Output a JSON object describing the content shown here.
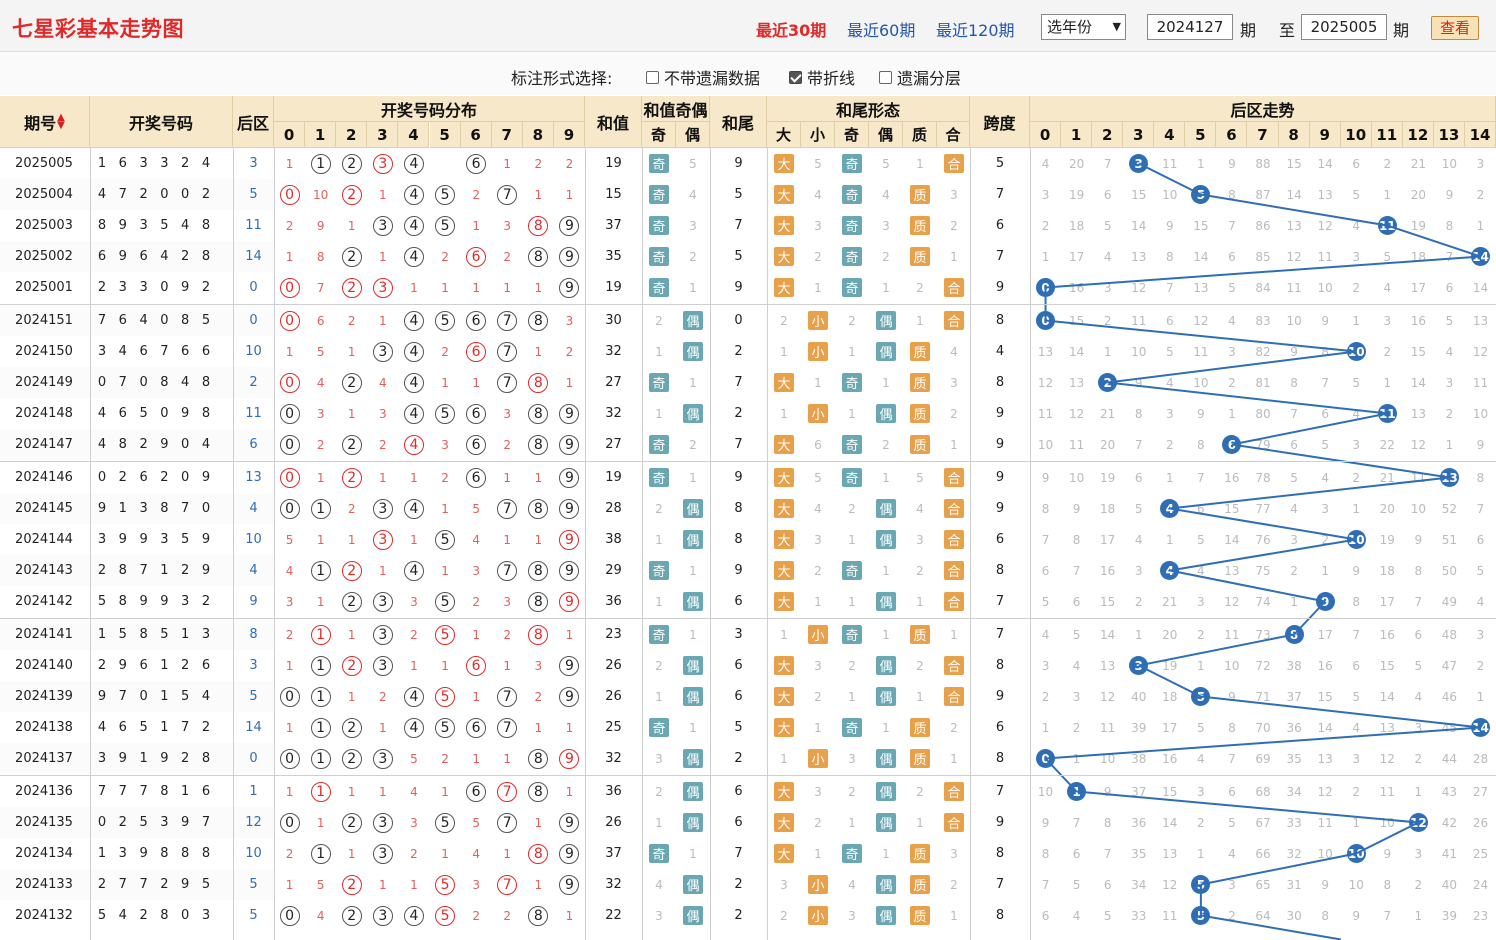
{
  "header": {
    "title": "七星彩基本走势图",
    "links": [
      "最近30期",
      "最近60期",
      "最近120期"
    ],
    "year_select": "选年份",
    "from_period": "2024127",
    "period_unit": "期",
    "to_label": "至",
    "to_period": "2025005",
    "view_button": "查看"
  },
  "options": {
    "label": "标注形式选择:",
    "items": [
      {
        "label": "不带遗漏数据",
        "checked": false
      },
      {
        "label": "带折线",
        "checked": true
      },
      {
        "label": "遗漏分层",
        "checked": false
      }
    ]
  },
  "columns": {
    "issue": "期号",
    "sort_icon": "sort-arrows-icon",
    "draw": "开奖号码",
    "back": "后区",
    "dist": "开奖号码分布",
    "digits": [
      "0",
      "1",
      "2",
      "3",
      "4",
      "5",
      "6",
      "7",
      "8",
      "9"
    ],
    "sum": "和值",
    "sum_oe": "和值奇偶",
    "odd": "奇",
    "even": "偶",
    "tail": "和尾",
    "tail_form": "和尾形态",
    "big": "大",
    "small": "小",
    "prime": "质",
    "composite": "合",
    "span": "跨度",
    "back_trend": "后区走势",
    "back_digits": [
      "0",
      "1",
      "2",
      "3",
      "4",
      "5",
      "6",
      "7",
      "8",
      "9",
      "10",
      "11",
      "12",
      "13",
      "14"
    ]
  },
  "rows": [
    {
      "issue": "2025005",
      "draw": "1 6 3 3 2 4",
      "back": "3",
      "dist": [
        "1",
        "H",
        "H",
        "R",
        "H",
        "",
        "H",
        "1",
        "2",
        "2"
      ],
      "sum": "19",
      "oe": [
        "奇",
        "5"
      ],
      "tail": "9",
      "bs": [
        "大",
        "5"
      ],
      "to": [
        "奇",
        "5"
      ],
      "pc": [
        "1",
        "合"
      ],
      "span": "5",
      "bt": [
        "4",
        "20",
        "7",
        "H",
        "11",
        "1",
        "9",
        "88",
        "15",
        "14",
        "6",
        "2",
        "21",
        "10",
        "3"
      ]
    },
    {
      "issue": "2025004",
      "draw": "4 7 2 0 0 2",
      "back": "5",
      "dist": [
        "R",
        "10",
        "R",
        "1",
        "H",
        "H",
        "2",
        "H",
        "1",
        "1"
      ],
      "sum": "15",
      "oe": [
        "奇",
        "4"
      ],
      "tail": "5",
      "bs": [
        "大",
        "4"
      ],
      "to": [
        "奇",
        "4"
      ],
      "pc": [
        "质",
        "3"
      ],
      "span": "7",
      "bt": [
        "3",
        "19",
        "6",
        "15",
        "10",
        "H",
        "8",
        "87",
        "14",
        "13",
        "5",
        "1",
        "20",
        "9",
        "2"
      ]
    },
    {
      "issue": "2025003",
      "draw": "8 9 3 5 4 8",
      "back": "11",
      "dist": [
        "2",
        "9",
        "1",
        "H",
        "H",
        "H",
        "1",
        "3",
        "R",
        "H"
      ],
      "sum": "37",
      "oe": [
        "奇",
        "3"
      ],
      "tail": "7",
      "bs": [
        "大",
        "3"
      ],
      "to": [
        "奇",
        "3"
      ],
      "pc": [
        "质",
        "2"
      ],
      "span": "6",
      "bt": [
        "2",
        "18",
        "5",
        "14",
        "9",
        "15",
        "7",
        "86",
        "13",
        "12",
        "4",
        "H",
        "19",
        "8",
        "1"
      ]
    },
    {
      "issue": "2025002",
      "draw": "6 9 6 4 2 8",
      "back": "14",
      "dist": [
        "1",
        "8",
        "H",
        "1",
        "H",
        "2",
        "R",
        "2",
        "H",
        "H"
      ],
      "sum": "35",
      "oe": [
        "奇",
        "2"
      ],
      "tail": "5",
      "bs": [
        "大",
        "2"
      ],
      "to": [
        "奇",
        "2"
      ],
      "pc": [
        "质",
        "1"
      ],
      "span": "7",
      "bt": [
        "1",
        "17",
        "4",
        "13",
        "8",
        "14",
        "6",
        "85",
        "12",
        "11",
        "3",
        "5",
        "18",
        "7",
        "H"
      ]
    },
    {
      "issue": "2025001",
      "draw": "2 3 3 0 9 2",
      "back": "0",
      "dist": [
        "R",
        "7",
        "R",
        "R",
        "1",
        "1",
        "1",
        "1",
        "1",
        "H"
      ],
      "sum": "19",
      "oe": [
        "奇",
        "1"
      ],
      "tail": "9",
      "bs": [
        "大",
        "1"
      ],
      "to": [
        "奇",
        "1"
      ],
      "pc": [
        "2",
        "合"
      ],
      "span": "9",
      "bt": [
        "H",
        "16",
        "3",
        "12",
        "7",
        "13",
        "5",
        "84",
        "11",
        "10",
        "2",
        "4",
        "17",
        "6",
        "14"
      ]
    },
    {
      "issue": "2024151",
      "draw": "7 6 4 0 8 5",
      "back": "0",
      "dist": [
        "R",
        "6",
        "2",
        "1",
        "H",
        "H",
        "H",
        "H",
        "H",
        "3"
      ],
      "sum": "30",
      "oe": [
        "2",
        "偶"
      ],
      "tail": "0",
      "bs": [
        "2",
        "小"
      ],
      "to": [
        "2",
        "偶"
      ],
      "pc": [
        "1",
        "合"
      ],
      "span": "8",
      "bt": [
        "H",
        "15",
        "2",
        "11",
        "6",
        "12",
        "4",
        "83",
        "10",
        "9",
        "1",
        "3",
        "16",
        "5",
        "13"
      ]
    },
    {
      "issue": "2024150",
      "draw": "3 4 6 7 6 6",
      "back": "10",
      "dist": [
        "1",
        "5",
        "1",
        "H",
        "H",
        "2",
        "R",
        "H",
        "1",
        "2"
      ],
      "sum": "32",
      "oe": [
        "1",
        "偶"
      ],
      "tail": "2",
      "bs": [
        "1",
        "小"
      ],
      "to": [
        "1",
        "偶"
      ],
      "pc": [
        "质",
        "4"
      ],
      "span": "4",
      "bt": [
        "13",
        "14",
        "1",
        "10",
        "5",
        "11",
        "3",
        "82",
        "9",
        "8",
        "H",
        "2",
        "15",
        "4",
        "12"
      ]
    },
    {
      "issue": "2024149",
      "draw": "0 7 0 8 4 8",
      "back": "2",
      "dist": [
        "R",
        "4",
        "H",
        "4",
        "H",
        "1",
        "1",
        "H",
        "R",
        "1"
      ],
      "sum": "27",
      "oe": [
        "奇",
        "1"
      ],
      "tail": "7",
      "bs": [
        "大",
        "1"
      ],
      "to": [
        "奇",
        "1"
      ],
      "pc": [
        "质",
        "3"
      ],
      "span": "8",
      "bt": [
        "12",
        "13",
        "H",
        "9",
        "4",
        "10",
        "2",
        "81",
        "8",
        "7",
        "5",
        "1",
        "14",
        "3",
        "11"
      ]
    },
    {
      "issue": "2024148",
      "draw": "4 6 5 0 9 8",
      "back": "11",
      "dist": [
        "H",
        "3",
        "1",
        "3",
        "H",
        "H",
        "H",
        "3",
        "H",
        "H"
      ],
      "sum": "32",
      "oe": [
        "1",
        "偶"
      ],
      "tail": "2",
      "bs": [
        "1",
        "小"
      ],
      "to": [
        "1",
        "偶"
      ],
      "pc": [
        "质",
        "2"
      ],
      "span": "9",
      "bt": [
        "11",
        "12",
        "21",
        "8",
        "3",
        "9",
        "1",
        "80",
        "7",
        "6",
        "4",
        "H",
        "13",
        "2",
        "10"
      ]
    },
    {
      "issue": "2024147",
      "draw": "4 8 2 9 0 4",
      "back": "6",
      "dist": [
        "H",
        "2",
        "H",
        "2",
        "R",
        "3",
        "H",
        "2",
        "H",
        "H"
      ],
      "sum": "27",
      "oe": [
        "奇",
        "2"
      ],
      "tail": "7",
      "bs": [
        "大",
        "6"
      ],
      "to": [
        "奇",
        "2"
      ],
      "pc": [
        "质",
        "1"
      ],
      "span": "9",
      "bt": [
        "10",
        "11",
        "20",
        "7",
        "2",
        "8",
        "H",
        "79",
        "6",
        "5",
        "3",
        "22",
        "12",
        "1",
        "9"
      ]
    },
    {
      "issue": "2024146",
      "draw": "0 2 6 2 0 9",
      "back": "13",
      "dist": [
        "R",
        "1",
        "R",
        "1",
        "1",
        "2",
        "H",
        "1",
        "1",
        "H"
      ],
      "sum": "19",
      "oe": [
        "奇",
        "1"
      ],
      "tail": "9",
      "bs": [
        "大",
        "5"
      ],
      "to": [
        "奇",
        "1"
      ],
      "pc": [
        "5",
        "合"
      ],
      "span": "9",
      "bt": [
        "9",
        "10",
        "19",
        "6",
        "1",
        "7",
        "16",
        "78",
        "5",
        "4",
        "2",
        "21",
        "11",
        "H",
        "8"
      ]
    },
    {
      "issue": "2024145",
      "draw": "9 1 3 8 7 0",
      "back": "4",
      "dist": [
        "H",
        "H",
        "2",
        "H",
        "H",
        "1",
        "5",
        "H",
        "H",
        "H"
      ],
      "sum": "28",
      "oe": [
        "2",
        "偶"
      ],
      "tail": "8",
      "bs": [
        "大",
        "4"
      ],
      "to": [
        "2",
        "偶"
      ],
      "pc": [
        "4",
        "合"
      ],
      "span": "9",
      "bt": [
        "8",
        "9",
        "18",
        "5",
        "H",
        "6",
        "15",
        "77",
        "4",
        "3",
        "1",
        "20",
        "10",
        "52",
        "7"
      ]
    },
    {
      "issue": "2024144",
      "draw": "3 9 9 3 5 9",
      "back": "10",
      "dist": [
        "5",
        "1",
        "1",
        "R",
        "1",
        "H",
        "4",
        "1",
        "1",
        "R"
      ],
      "sum": "38",
      "oe": [
        "1",
        "偶"
      ],
      "tail": "8",
      "bs": [
        "大",
        "3"
      ],
      "to": [
        "1",
        "偶"
      ],
      "pc": [
        "3",
        "合"
      ],
      "span": "6",
      "bt": [
        "7",
        "8",
        "17",
        "4",
        "1",
        "5",
        "14",
        "76",
        "3",
        "2",
        "H",
        "19",
        "9",
        "51",
        "6"
      ]
    },
    {
      "issue": "2024143",
      "draw": "2 8 7 1 2 9",
      "back": "4",
      "dist": [
        "4",
        "H",
        "R",
        "1",
        "H",
        "1",
        "3",
        "H",
        "H",
        "H"
      ],
      "sum": "29",
      "oe": [
        "奇",
        "1"
      ],
      "tail": "9",
      "bs": [
        "大",
        "2"
      ],
      "to": [
        "奇",
        "1"
      ],
      "pc": [
        "2",
        "合"
      ],
      "span": "8",
      "bt": [
        "6",
        "7",
        "16",
        "3",
        "H",
        "4",
        "13",
        "75",
        "2",
        "1",
        "9",
        "18",
        "8",
        "50",
        "5"
      ]
    },
    {
      "issue": "2024142",
      "draw": "5 8 9 9 3 2",
      "back": "9",
      "dist": [
        "3",
        "1",
        "H",
        "H",
        "3",
        "H",
        "2",
        "3",
        "H",
        "R"
      ],
      "sum": "36",
      "oe": [
        "1",
        "偶"
      ],
      "tail": "6",
      "bs": [
        "大",
        "1"
      ],
      "to": [
        "1",
        "偶"
      ],
      "pc": [
        "1",
        "合"
      ],
      "span": "7",
      "bt": [
        "5",
        "6",
        "15",
        "2",
        "21",
        "3",
        "12",
        "74",
        "1",
        "H",
        "8",
        "17",
        "7",
        "49",
        "4"
      ]
    },
    {
      "issue": "2024141",
      "draw": "1 5 8 5 1 3",
      "back": "8",
      "dist": [
        "2",
        "R",
        "1",
        "H",
        "2",
        "R",
        "1",
        "2",
        "R",
        "1"
      ],
      "sum": "23",
      "oe": [
        "奇",
        "1"
      ],
      "tail": "3",
      "bs": [
        "1",
        "小"
      ],
      "to": [
        "奇",
        "1"
      ],
      "pc": [
        "质",
        "1"
      ],
      "span": "7",
      "bt": [
        "4",
        "5",
        "14",
        "1",
        "20",
        "2",
        "11",
        "73",
        "H",
        "17",
        "7",
        "16",
        "6",
        "48",
        "3"
      ]
    },
    {
      "issue": "2024140",
      "draw": "2 9 6 1 2 6",
      "back": "3",
      "dist": [
        "1",
        "H",
        "R",
        "H",
        "1",
        "1",
        "R",
        "1",
        "3",
        "H"
      ],
      "sum": "26",
      "oe": [
        "2",
        "偶"
      ],
      "tail": "6",
      "bs": [
        "大",
        "3"
      ],
      "to": [
        "2",
        "偶"
      ],
      "pc": [
        "2",
        "合"
      ],
      "span": "8",
      "bt": [
        "3",
        "4",
        "13",
        "H",
        "19",
        "1",
        "10",
        "72",
        "38",
        "16",
        "6",
        "15",
        "5",
        "47",
        "2"
      ]
    },
    {
      "issue": "2024139",
      "draw": "9 7 0 1 5 4",
      "back": "5",
      "dist": [
        "H",
        "H",
        "1",
        "2",
        "H",
        "R",
        "1",
        "H",
        "2",
        "H"
      ],
      "sum": "26",
      "oe": [
        "1",
        "偶"
      ],
      "tail": "6",
      "bs": [
        "大",
        "2"
      ],
      "to": [
        "1",
        "偶"
      ],
      "pc": [
        "1",
        "合"
      ],
      "span": "9",
      "bt": [
        "2",
        "3",
        "12",
        "40",
        "18",
        "H",
        "9",
        "71",
        "37",
        "15",
        "5",
        "14",
        "4",
        "46",
        "1"
      ]
    },
    {
      "issue": "2024138",
      "draw": "4 6 5 1 7 2",
      "back": "14",
      "dist": [
        "1",
        "H",
        "H",
        "1",
        "H",
        "H",
        "H",
        "H",
        "1",
        "1"
      ],
      "sum": "25",
      "oe": [
        "奇",
        "1"
      ],
      "tail": "5",
      "bs": [
        "大",
        "1"
      ],
      "to": [
        "奇",
        "1"
      ],
      "pc": [
        "质",
        "2"
      ],
      "span": "6",
      "bt": [
        "1",
        "2",
        "11",
        "39",
        "17",
        "5",
        "8",
        "70",
        "36",
        "14",
        "4",
        "13",
        "3",
        "45",
        "H"
      ]
    },
    {
      "issue": "2024137",
      "draw": "3 9 1 9 2 8",
      "back": "0",
      "dist": [
        "H",
        "H",
        "H",
        "H",
        "5",
        "2",
        "1",
        "1",
        "H",
        "R"
      ],
      "sum": "32",
      "oe": [
        "3",
        "偶"
      ],
      "tail": "2",
      "bs": [
        "1",
        "小"
      ],
      "to": [
        "3",
        "偶"
      ],
      "pc": [
        "质",
        "1"
      ],
      "span": "8",
      "bt": [
        "H",
        "1",
        "10",
        "38",
        "16",
        "4",
        "7",
        "69",
        "35",
        "13",
        "3",
        "12",
        "2",
        "44",
        "28"
      ]
    },
    {
      "issue": "2024136",
      "draw": "7 7 7 8 1 6",
      "back": "1",
      "dist": [
        "1",
        "R",
        "1",
        "1",
        "4",
        "1",
        "H",
        "R",
        "H",
        "1"
      ],
      "sum": "36",
      "oe": [
        "2",
        "偶"
      ],
      "tail": "6",
      "bs": [
        "大",
        "3"
      ],
      "to": [
        "2",
        "偶"
      ],
      "pc": [
        "2",
        "合"
      ],
      "span": "7",
      "bt": [
        "10",
        "H",
        "9",
        "37",
        "15",
        "3",
        "6",
        "68",
        "34",
        "12",
        "2",
        "11",
        "1",
        "43",
        "27"
      ]
    },
    {
      "issue": "2024135",
      "draw": "0 2 5 3 9 7",
      "back": "12",
      "dist": [
        "H",
        "1",
        "H",
        "H",
        "3",
        "H",
        "5",
        "H",
        "1",
        "H"
      ],
      "sum": "26",
      "oe": [
        "1",
        "偶"
      ],
      "tail": "6",
      "bs": [
        "大",
        "2"
      ],
      "to": [
        "1",
        "偶"
      ],
      "pc": [
        "1",
        "合"
      ],
      "span": "9",
      "bt": [
        "9",
        "7",
        "8",
        "36",
        "14",
        "2",
        "5",
        "67",
        "33",
        "11",
        "1",
        "10",
        "H",
        "42",
        "26"
      ]
    },
    {
      "issue": "2024134",
      "draw": "1 3 9 8 8 8",
      "back": "10",
      "dist": [
        "2",
        "H",
        "1",
        "H",
        "2",
        "1",
        "4",
        "1",
        "R",
        "H"
      ],
      "sum": "37",
      "oe": [
        "奇",
        "1"
      ],
      "tail": "7",
      "bs": [
        "大",
        "1"
      ],
      "to": [
        "奇",
        "1"
      ],
      "pc": [
        "质",
        "3"
      ],
      "span": "8",
      "bt": [
        "8",
        "6",
        "7",
        "35",
        "13",
        "1",
        "4",
        "66",
        "32",
        "10",
        "H",
        "9",
        "3",
        "41",
        "25"
      ]
    },
    {
      "issue": "2024133",
      "draw": "2 7 7 2 9 5",
      "back": "5",
      "dist": [
        "1",
        "5",
        "R",
        "1",
        "1",
        "R",
        "3",
        "R",
        "1",
        "H"
      ],
      "sum": "32",
      "oe": [
        "4",
        "偶"
      ],
      "tail": "2",
      "bs": [
        "3",
        "小"
      ],
      "to": [
        "4",
        "偶"
      ],
      "pc": [
        "质",
        "2"
      ],
      "span": "7",
      "bt": [
        "7",
        "5",
        "6",
        "34",
        "12",
        "H",
        "3",
        "65",
        "31",
        "9",
        "10",
        "8",
        "2",
        "40",
        "24"
      ]
    },
    {
      "issue": "2024132",
      "draw": "5 4 2 8 0 3",
      "back": "5",
      "dist": [
        "H",
        "4",
        "H",
        "H",
        "H",
        "R",
        "2",
        "2",
        "H",
        "1"
      ],
      "sum": "22",
      "oe": [
        "3",
        "偶"
      ],
      "tail": "2",
      "bs": [
        "2",
        "小"
      ],
      "to": [
        "3",
        "偶"
      ],
      "pc": [
        "质",
        "1"
      ],
      "span": "8",
      "bt": [
        "6",
        "4",
        "5",
        "33",
        "11",
        "H",
        "2",
        "64",
        "30",
        "8",
        "9",
        "7",
        "1",
        "39",
        "23"
      ]
    }
  ]
}
